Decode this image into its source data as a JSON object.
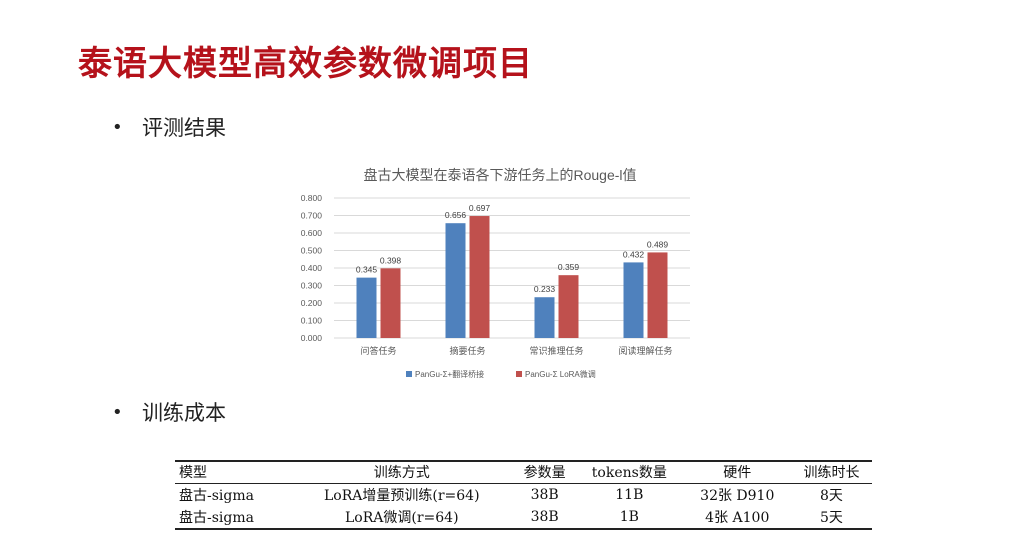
{
  "title": "泰语大模型高效参数微调项目",
  "bullets": {
    "bullet_symbol": "•",
    "eval": "评测结果",
    "cost": "训练成本"
  },
  "chart_data": {
    "type": "bar",
    "title": "盘古大模型在泰语各下游任务上的Rouge-l值",
    "categories": [
      "问答任务",
      "摘要任务",
      "常识推理任务",
      "阅读理解任务"
    ],
    "series": [
      {
        "name": "PanGu-Σ+翻译桥接",
        "values": [
          0.345,
          0.656,
          0.233,
          0.432
        ],
        "color": "#4f81bd"
      },
      {
        "name": "PanGu-Σ LoRA微调",
        "values": [
          0.398,
          0.697,
          0.359,
          0.489
        ],
        "color": "#c0504d"
      }
    ],
    "value_labels": [
      [
        "0.345",
        "0.656",
        "0.233",
        "0.432"
      ],
      [
        "0.398",
        "0.697",
        "0.359",
        "0.489"
      ]
    ],
    "ylim": [
      0,
      0.8
    ],
    "yticks": [
      "0.000",
      "0.100",
      "0.200",
      "0.300",
      "0.400",
      "0.500",
      "0.600",
      "0.700",
      "0.800"
    ],
    "grid": true,
    "legend": "bottom"
  },
  "table": {
    "headers": [
      "模型",
      "训练方式",
      "参数量",
      "tokens数量",
      "硬件",
      "训练时长"
    ],
    "rows": [
      [
        "盘古-sigma",
        "LoRA增量预训练(r=64)",
        "38B",
        "11B",
        "32张 D910",
        "8天"
      ],
      [
        "盘古-sigma",
        "LoRA微调(r=64)",
        "38B",
        "1B",
        "4张 A100",
        "5天"
      ]
    ]
  }
}
